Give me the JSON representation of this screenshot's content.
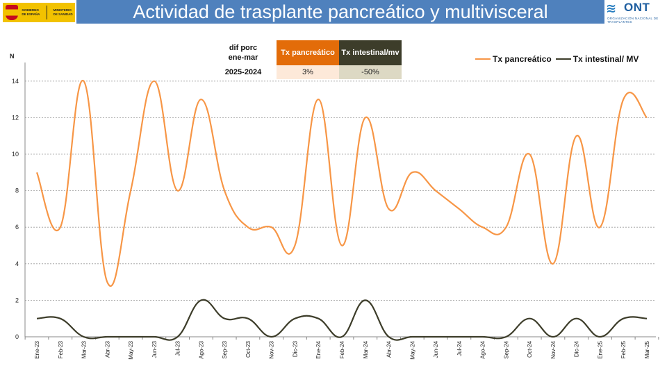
{
  "header": {
    "title": "Actividad de trasplante pancreático y multivisceral",
    "gov_logo_text_1": "Gobierno de España",
    "gov_logo_text_2": "Ministerio de Sanidad",
    "ont_brand": "ONT",
    "ont_subtitle": "Organización Nacional de Trasplantes",
    "title_bar_color": "#4f81bd"
  },
  "info_table": {
    "label_line1": "dif porc",
    "label_line2": "ene-mar",
    "period": "2025-2024",
    "col_pancreatic": "Tx pancreático",
    "col_intestinal": "Tx intestinal/mv",
    "val_pancreatic": "3%",
    "val_intestinal": "-50%"
  },
  "chart_data": {
    "type": "line",
    "ylabel": "N",
    "ylim": [
      0,
      15
    ],
    "yticks": [
      0,
      2,
      4,
      6,
      8,
      10,
      12,
      14
    ],
    "grid": true,
    "legend_position": "top-right",
    "categories": [
      "Ene-23",
      "Feb-23",
      "Mar-23",
      "Abr-23",
      "May-23",
      "Jun-23",
      "Jul-23",
      "Ago-23",
      "Sep-23",
      "Oct-23",
      "Nov-23",
      "Dic-23",
      "Ene-24",
      "Feb-24",
      "Mar-24",
      "Abr-24",
      "May-24",
      "Jun-24",
      "Jul-24",
      "Ago-24",
      "Sep-24",
      "Oct-24",
      "Nov-24",
      "Dic-24",
      "Ene-25",
      "Feb-25",
      "Mar-25"
    ],
    "series": [
      {
        "name": "Tx pancreático",
        "color": "#f79646",
        "values": [
          9,
          6,
          14,
          3,
          8,
          14,
          8,
          13,
          8,
          6,
          6,
          5,
          13,
          5,
          12,
          7,
          9,
          8,
          7,
          6,
          6,
          10,
          4,
          11,
          6,
          13,
          12
        ]
      },
      {
        "name": "Tx intestinal/ MV",
        "color": "#3d3d2a",
        "values": [
          1,
          1,
          0,
          0,
          0,
          0,
          0,
          2,
          1,
          1,
          0,
          1,
          1,
          0,
          2,
          0,
          0,
          0,
          0,
          0,
          0,
          1,
          0,
          1,
          0,
          1,
          1
        ]
      }
    ]
  }
}
